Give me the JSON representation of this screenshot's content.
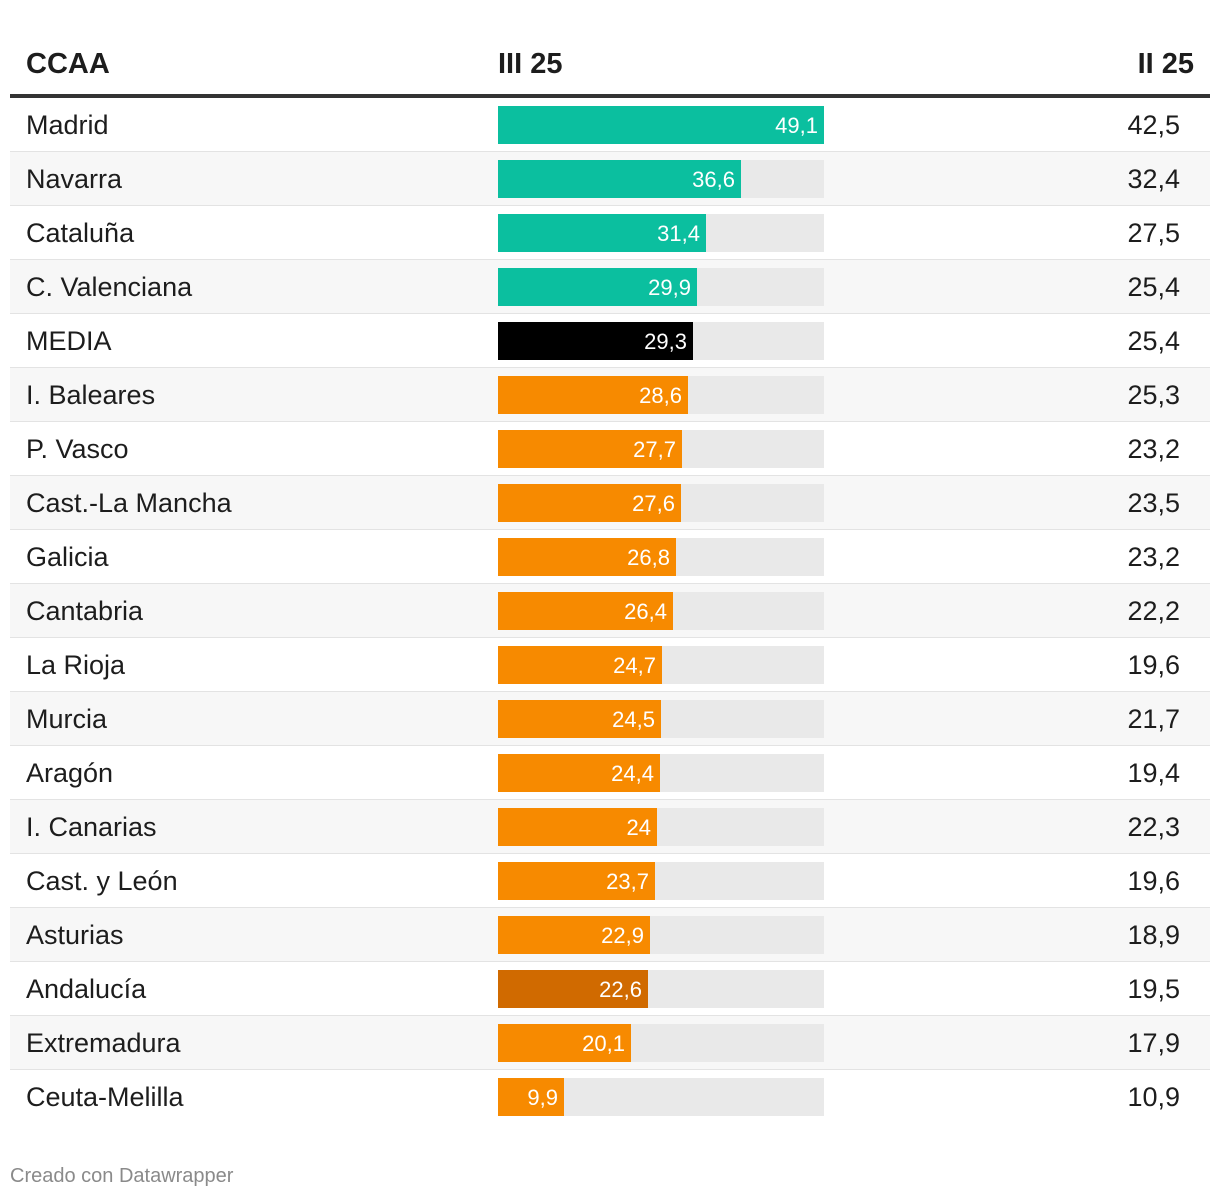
{
  "chart_data": {
    "type": "table",
    "headers": {
      "region": "CCAA",
      "current": "III 25",
      "previous": "II 25"
    },
    "max_value": 49.1,
    "colors": {
      "leader": "#0bbf9f",
      "average": "#000000",
      "laggard": "#f78a00",
      "highlight": "#d06a00",
      "track": "#e9e9e9"
    },
    "rows": [
      {
        "region": "Madrid",
        "current": 49.1,
        "current_label": "49,1",
        "previous_label": "42,5",
        "color": "#0bbf9f"
      },
      {
        "region": "Navarra",
        "current": 36.6,
        "current_label": "36,6",
        "previous_label": "32,4",
        "color": "#0bbf9f"
      },
      {
        "region": "Cataluña",
        "current": 31.4,
        "current_label": "31,4",
        "previous_label": "27,5",
        "color": "#0bbf9f"
      },
      {
        "region": "C. Valenciana",
        "current": 29.9,
        "current_label": "29,9",
        "previous_label": "25,4",
        "color": "#0bbf9f"
      },
      {
        "region": "MEDIA",
        "current": 29.3,
        "current_label": "29,3",
        "previous_label": "25,4",
        "color": "#000000"
      },
      {
        "region": "I. Baleares",
        "current": 28.6,
        "current_label": "28,6",
        "previous_label": "25,3",
        "color": "#f78a00"
      },
      {
        "region": "P. Vasco",
        "current": 27.7,
        "current_label": "27,7",
        "previous_label": "23,2",
        "color": "#f78a00"
      },
      {
        "region": "Cast.-La Mancha",
        "current": 27.6,
        "current_label": "27,6",
        "previous_label": "23,5",
        "color": "#f78a00"
      },
      {
        "region": "Galicia",
        "current": 26.8,
        "current_label": "26,8",
        "previous_label": "23,2",
        "color": "#f78a00"
      },
      {
        "region": "Cantabria",
        "current": 26.4,
        "current_label": "26,4",
        "previous_label": "22,2",
        "color": "#f78a00"
      },
      {
        "region": "La Rioja",
        "current": 24.7,
        "current_label": "24,7",
        "previous_label": "19,6",
        "color": "#f78a00"
      },
      {
        "region": "Murcia",
        "current": 24.5,
        "current_label": "24,5",
        "previous_label": "21,7",
        "color": "#f78a00"
      },
      {
        "region": "Aragón",
        "current": 24.4,
        "current_label": "24,4",
        "previous_label": "19,4",
        "color": "#f78a00"
      },
      {
        "region": "I. Canarias",
        "current": 24,
        "current_label": "24",
        "previous_label": "22,3",
        "color": "#f78a00"
      },
      {
        "region": "Cast. y León",
        "current": 23.7,
        "current_label": "23,7",
        "previous_label": "19,6",
        "color": "#f78a00"
      },
      {
        "region": "Asturias",
        "current": 22.9,
        "current_label": "22,9",
        "previous_label": "18,9",
        "color": "#f78a00"
      },
      {
        "region": "Andalucía",
        "current": 22.6,
        "current_label": "22,6",
        "previous_label": "19,5",
        "color": "#d06a00"
      },
      {
        "region": "Extremadura",
        "current": 20.1,
        "current_label": "20,1",
        "previous_label": "17,9",
        "color": "#f78a00"
      },
      {
        "region": "Ceuta-Melilla",
        "current": 9.9,
        "current_label": "9,9",
        "previous_label": "10,9",
        "color": "#f78a00"
      }
    ]
  },
  "footer": {
    "credit": "Creado con Datawrapper"
  }
}
